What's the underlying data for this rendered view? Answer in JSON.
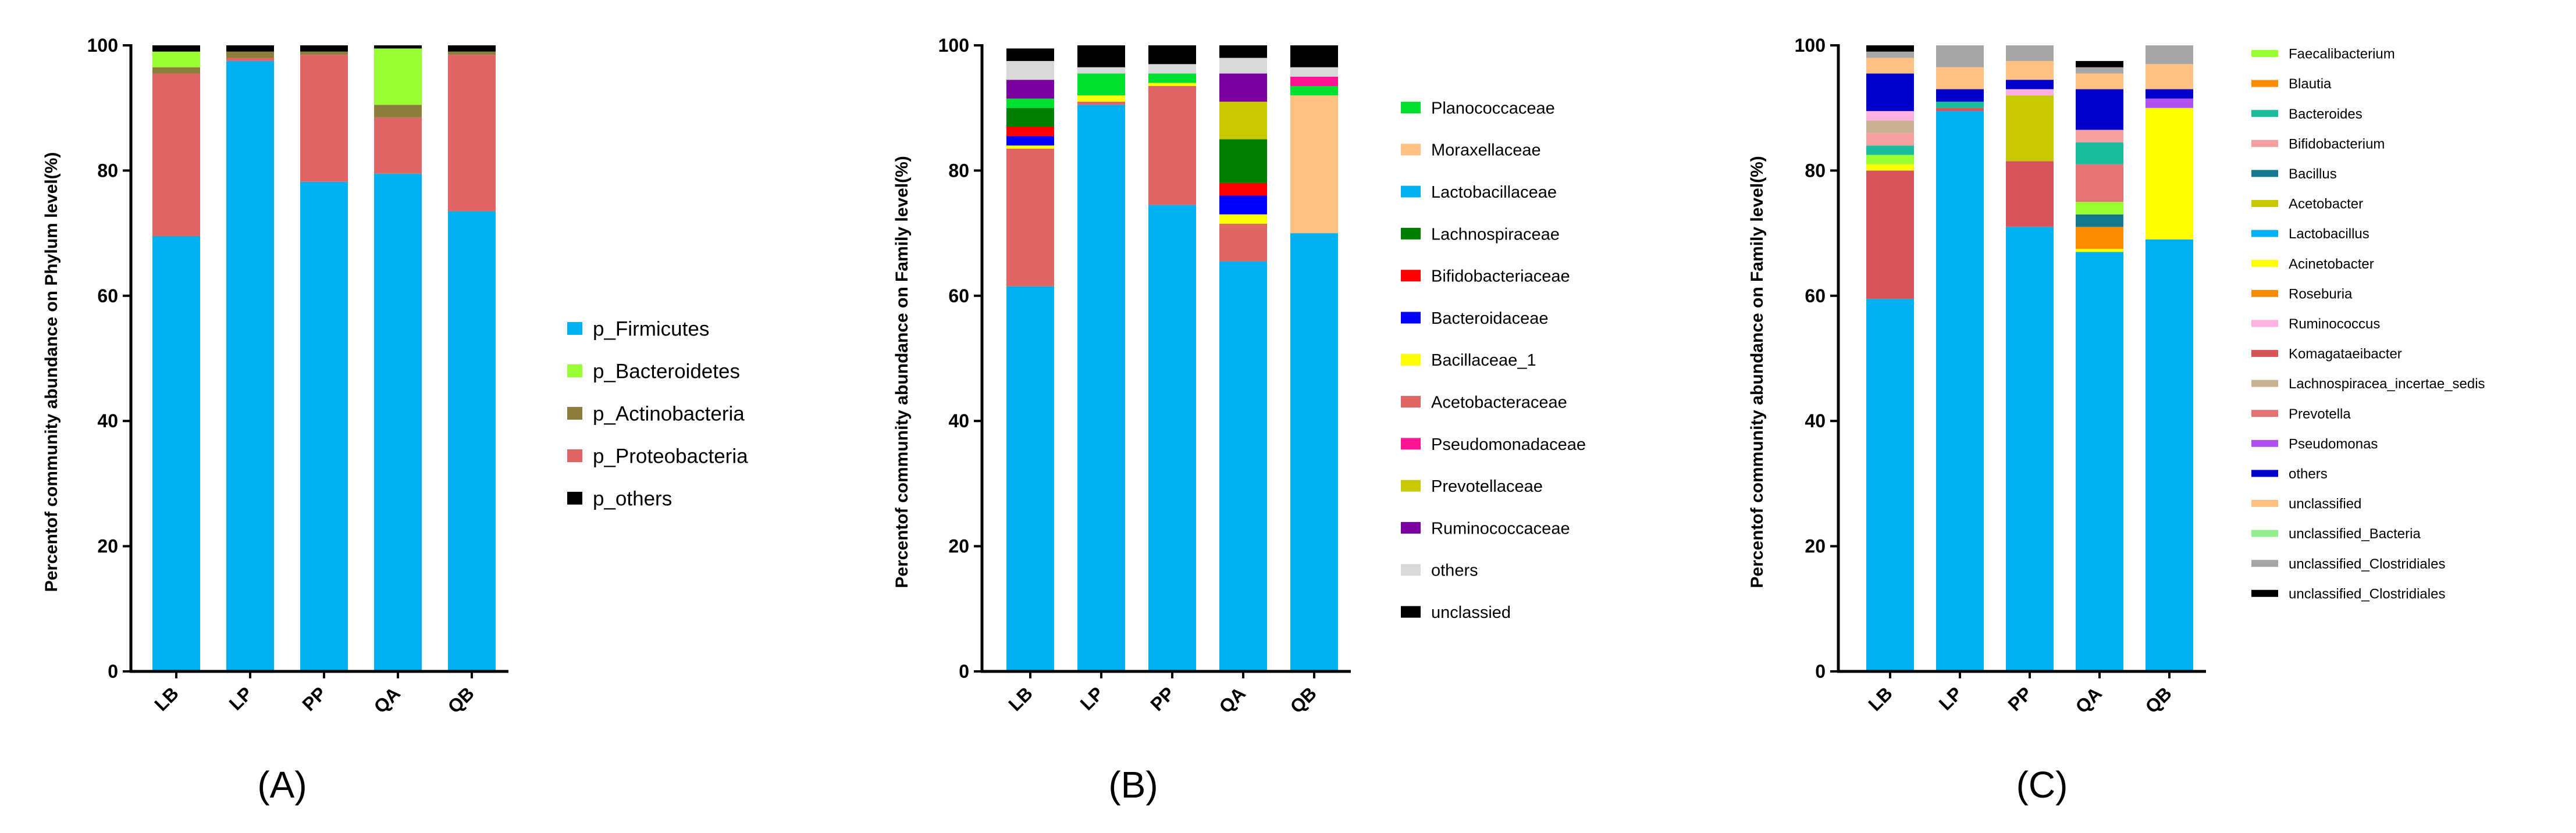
{
  "figure": {
    "panel_labels": [
      "(A)",
      "(B)",
      "(C)"
    ]
  },
  "chart_data": [
    {
      "type": "stacked_bar",
      "panel": "(A)",
      "title": "",
      "xlabel": "",
      "ylabel": "Percentof community abundance  on Phylum level(%)",
      "ylim": [
        0,
        100
      ],
      "yticks": [
        0,
        20,
        40,
        60,
        80,
        100
      ],
      "categories": [
        "LB",
        "LP",
        "PP",
        "QA",
        "QB"
      ],
      "series": [
        {
          "name": "p_Firmicutes",
          "color": "#00B0F0",
          "values": [
            69.5,
            97.5,
            78.2,
            79.5,
            73.5
          ]
        },
        {
          "name": "p_Proteobacteria",
          "color": "#E06666",
          "values": [
            26.0,
            0.5,
            20.3,
            9.0,
            25.0
          ]
        },
        {
          "name": "p_Actinobacteria",
          "color": "#8B7E3A",
          "values": [
            1.0,
            1.0,
            0.5,
            2.0,
            0.5
          ]
        },
        {
          "name": "p_Bacteroidetes",
          "color": "#99FF33",
          "values": [
            2.5,
            0.0,
            0.0,
            9.0,
            0.0
          ]
        },
        {
          "name": "p_others",
          "color": "#000000",
          "values": [
            1.0,
            1.0,
            1.0,
            0.5,
            1.0
          ]
        }
      ],
      "legend": [
        {
          "name": "p_Firmicutes",
          "color": "#00B0F0"
        },
        {
          "name": "p_Bacteroidetes",
          "color": "#99FF33"
        },
        {
          "name": "p_Actinobacteria",
          "color": "#8B7E3A"
        },
        {
          "name": "p_Proteobacteria",
          "color": "#E06666"
        },
        {
          "name": "p_others",
          "color": "#000000"
        }
      ]
    },
    {
      "type": "stacked_bar",
      "panel": "(B)",
      "title": "",
      "xlabel": "",
      "ylabel": "Percentof community abundance  on Family level(%)",
      "ylim": [
        0,
        100
      ],
      "yticks": [
        0,
        20,
        40,
        60,
        80,
        100
      ],
      "categories": [
        "LB",
        "LP",
        "PP",
        "QA",
        "QB"
      ],
      "series": [
        {
          "name": "Lactobacillaceae",
          "color": "#00B0F0",
          "values": [
            61.5,
            90.5,
            74.5,
            65.5,
            70.0
          ]
        },
        {
          "name": "Acetobacteraceae",
          "color": "#E06666",
          "values": [
            22.0,
            0.5,
            19.0,
            6.0,
            0.0
          ]
        },
        {
          "name": "Bacillaceae_1",
          "color": "#FFFF00",
          "values": [
            0.5,
            1.0,
            0.5,
            1.5,
            0.0
          ]
        },
        {
          "name": "Bacteroidaceae",
          "color": "#0000FF",
          "values": [
            1.5,
            0.0,
            0.0,
            3.0,
            0.0
          ]
        },
        {
          "name": "Bifidobacteriaceae",
          "color": "#FF0000",
          "values": [
            1.5,
            0.0,
            0.0,
            2.0,
            0.0
          ]
        },
        {
          "name": "Lachnospiraceae",
          "color": "#008000",
          "values": [
            3.0,
            0.0,
            0.0,
            7.0,
            0.0
          ]
        },
        {
          "name": "Prevotellaceae",
          "color": "#C8C800",
          "values": [
            0.0,
            0.0,
            0.0,
            6.0,
            0.0
          ]
        },
        {
          "name": "Moraxellaceae",
          "color": "#FFC080",
          "values": [
            0.0,
            0.0,
            0.0,
            0.0,
            22.0
          ]
        },
        {
          "name": "Planococcaceae",
          "color": "#00E030",
          "values": [
            1.5,
            3.5,
            1.5,
            0.0,
            1.5
          ]
        },
        {
          "name": "Pseudomonadaceae",
          "color": "#FF1493",
          "values": [
            0.0,
            0.0,
            0.0,
            0.0,
            1.5
          ]
        },
        {
          "name": "Ruminococcaceae",
          "color": "#7B00A0",
          "values": [
            3.0,
            0.0,
            0.0,
            4.5,
            0.0
          ]
        },
        {
          "name": "others",
          "color": "#D9D9D9",
          "values": [
            3.0,
            1.0,
            1.5,
            2.5,
            1.5
          ]
        },
        {
          "name": "unclassied",
          "color": "#000000",
          "values": [
            2.0,
            3.5,
            3.0,
            2.0,
            3.5
          ]
        }
      ],
      "legend": [
        {
          "name": "Planococcaceae",
          "color": "#00E030"
        },
        {
          "name": "Moraxellaceae",
          "color": "#FFC080"
        },
        {
          "name": "Lactobacillaceae",
          "color": "#00B0F0"
        },
        {
          "name": "Lachnospiraceae",
          "color": "#008000"
        },
        {
          "name": "Bifidobacteriaceae",
          "color": "#FF0000"
        },
        {
          "name": "Bacteroidaceae",
          "color": "#0000FF"
        },
        {
          "name": "Bacillaceae_1",
          "color": "#FFFF00"
        },
        {
          "name": "Acetobacteraceae",
          "color": "#E06666"
        },
        {
          "name": "Pseudomonadaceae",
          "color": "#FF1493"
        },
        {
          "name": "Prevotellaceae",
          "color": "#C8C800"
        },
        {
          "name": "Ruminococcaceae",
          "color": "#7B00A0"
        },
        {
          "name": "others",
          "color": "#D9D9D9"
        },
        {
          "name": "unclassied",
          "color": "#000000"
        }
      ]
    },
    {
      "type": "stacked_bar",
      "panel": "(C)",
      "title": "",
      "xlabel": "",
      "ylabel": "Percentof community abundance  on Family level(%)",
      "ylim": [
        0,
        100
      ],
      "yticks": [
        0,
        20,
        40,
        60,
        80,
        100
      ],
      "categories": [
        "LB",
        "LP",
        "PP",
        "QA",
        "QB"
      ],
      "series": [
        {
          "name": "Lactobacillus",
          "color": "#00B0F0",
          "values": [
            59.5,
            89.5,
            71.0,
            67.0,
            69.0
          ]
        },
        {
          "name": "Komagataeibacter",
          "color": "#D9535A",
          "values": [
            20.5,
            0.5,
            10.5,
            0.0,
            0.0
          ]
        },
        {
          "name": "Acinetobacter",
          "color": "#FFFF00",
          "values": [
            1.0,
            0.0,
            0.0,
            0.5,
            21.0
          ]
        },
        {
          "name": "Roseburia",
          "color": "#FF8C00",
          "values": [
            0.0,
            0.0,
            0.0,
            3.5,
            0.0
          ]
        },
        {
          "name": "Bacillus",
          "color": "#137A8F",
          "values": [
            0.0,
            0.0,
            0.0,
            2.0,
            0.0
          ]
        },
        {
          "name": "Faecalibacterium",
          "color": "#99FF33",
          "values": [
            1.5,
            0.0,
            0.0,
            2.0,
            0.0
          ]
        },
        {
          "name": "Prevotella",
          "color": "#E57373",
          "values": [
            0.0,
            0.0,
            0.0,
            6.0,
            0.0
          ]
        },
        {
          "name": "Bacteroides",
          "color": "#1ABC9C",
          "values": [
            1.5,
            1.0,
            0.0,
            3.5,
            0.0
          ]
        },
        {
          "name": "Bifidobacterium",
          "color": "#F4A0A0",
          "values": [
            2.0,
            0.0,
            0.0,
            2.0,
            0.0
          ]
        },
        {
          "name": "Acetobacter",
          "color": "#C8C800",
          "values": [
            0.0,
            0.0,
            10.5,
            0.0,
            0.0
          ]
        },
        {
          "name": "Lachnospiracea_incertae_sedis",
          "color": "#C8B090",
          "values": [
            2.0,
            0.0,
            0.0,
            0.0,
            0.0
          ]
        },
        {
          "name": "Pseudomonas",
          "color": "#B050F0",
          "values": [
            0.0,
            0.0,
            0.0,
            0.0,
            1.5
          ]
        },
        {
          "name": "Ruminococcus",
          "color": "#FFB0E0",
          "values": [
            1.5,
            0.0,
            1.0,
            0.0,
            0.0
          ]
        },
        {
          "name": "others",
          "color": "#0000CD",
          "values": [
            6.0,
            2.0,
            1.5,
            6.5,
            1.5
          ]
        },
        {
          "name": "unclassified",
          "color": "#FFC080",
          "values": [
            2.5,
            3.5,
            3.0,
            2.5,
            4.0
          ]
        },
        {
          "name": "unclassified_Bacteria",
          "color": "#90EE90",
          "values": [
            0.0,
            0.0,
            0.0,
            0.0,
            0.0
          ]
        },
        {
          "name": "unclassified_Clostridiales",
          "color": "#A6A6A6",
          "values": [
            1.0,
            3.5,
            2.5,
            1.0,
            3.0
          ]
        },
        {
          "name": "unclassified_Clostridiales",
          "color": "#000000",
          "values": [
            1.0,
            0.0,
            0.0,
            1.0,
            0.0
          ]
        }
      ],
      "legend": [
        {
          "name": "Faecalibacterium",
          "color": "#99FF33"
        },
        {
          "name": "Blautia",
          "color": "#FF8C00"
        },
        {
          "name": "Bacteroides",
          "color": "#1ABC9C"
        },
        {
          "name": "Bifidobacterium",
          "color": "#F4A0A0"
        },
        {
          "name": "Bacillus",
          "color": "#137A8F"
        },
        {
          "name": "Acetobacter",
          "color": "#C8C800"
        },
        {
          "name": "Lactobacillus",
          "color": "#00B0F0"
        },
        {
          "name": "Acinetobacter",
          "color": "#FFFF00"
        },
        {
          "name": "Roseburia",
          "color": "#FF8C00"
        },
        {
          "name": "Ruminococcus",
          "color": "#FFB0E0"
        },
        {
          "name": "Komagataeibacter",
          "color": "#D9535A"
        },
        {
          "name": "Lachnospiracea_incertae_sedis",
          "color": "#C8B090"
        },
        {
          "name": "Prevotella",
          "color": "#E57373"
        },
        {
          "name": "Pseudomonas",
          "color": "#B050F0"
        },
        {
          "name": "others",
          "color": "#0000CD"
        },
        {
          "name": "unclassified",
          "color": "#FFC080"
        },
        {
          "name": "unclassified_Bacteria",
          "color": "#90EE90"
        },
        {
          "name": "unclassified_Clostridiales",
          "color": "#A6A6A6"
        },
        {
          "name": "unclassified_Clostridiales",
          "color": "#000000"
        }
      ]
    }
  ]
}
